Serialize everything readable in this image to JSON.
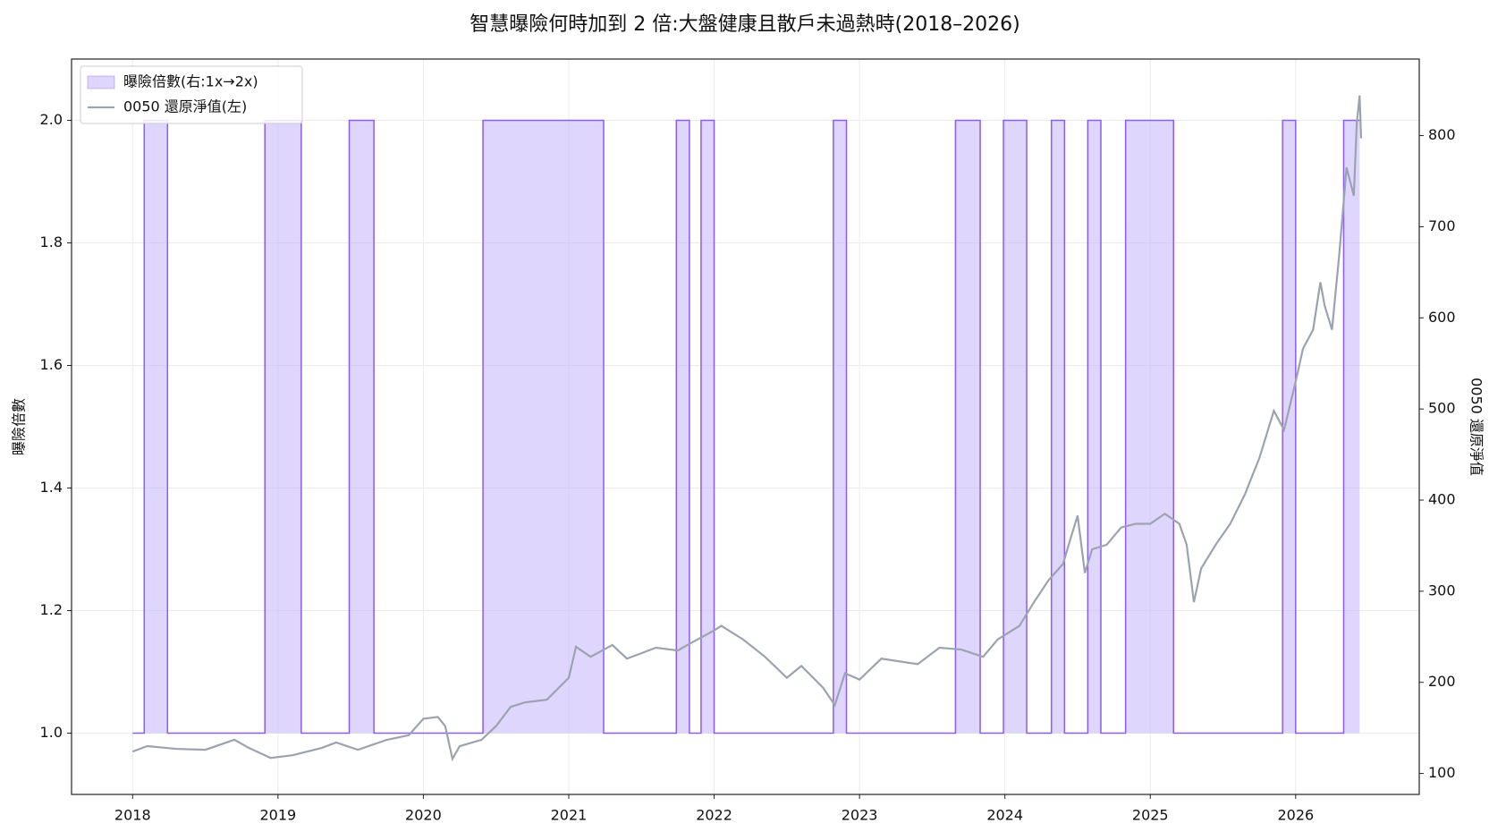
{
  "chart_data": {
    "type": "line",
    "title": "智慧曝險何時加到 2 倍:大盤健康且散戶未過熱時(2018–2026)",
    "y_label": "曝險倍數",
    "y2_label": "0050 還原淨值",
    "xlim": [
      2017.58,
      2026.85
    ],
    "xticks": [
      2018,
      2019,
      2020,
      2021,
      2022,
      2023,
      2024,
      2025,
      2026
    ],
    "ylim": [
      0.9,
      2.1
    ],
    "yticks": [
      {
        "value": 1.0,
        "label": "1.0"
      },
      {
        "value": 1.2,
        "label": "1.2"
      },
      {
        "value": 1.4,
        "label": "1.4"
      },
      {
        "value": 1.6,
        "label": "1.6"
      },
      {
        "value": 1.8,
        "label": "1.8"
      },
      {
        "value": 2.0,
        "label": "2.0"
      }
    ],
    "y2lim": [
      77,
      884
    ],
    "y2ticks": [
      100,
      200,
      300,
      400,
      500,
      600,
      700,
      800
    ],
    "grid": true,
    "legend": "upper left",
    "series": [
      {
        "name": "曝險倍數(右:1x→2x)",
        "color": "#8b5cf6",
        "fill_color": "#c4b5fd",
        "step": "post",
        "axis": "y",
        "x": [
          2018.0,
          2018.08,
          2018.24,
          2018.91,
          2019.16,
          2019.49,
          2019.66,
          2020.41,
          2021.24,
          2021.74,
          2021.83,
          2021.91,
          2022.0,
          2022.82,
          2022.91,
          2023.66,
          2023.83,
          2023.99,
          2024.15,
          2024.32,
          2024.41,
          2024.57,
          2024.66,
          2024.83,
          2025.16,
          2025.91,
          2026.0,
          2026.33,
          2026.44
        ],
        "values": [
          1,
          2,
          1,
          2,
          1,
          2,
          1,
          2,
          1,
          2,
          1,
          2,
          1,
          2,
          1,
          2,
          1,
          2,
          1,
          2,
          1,
          2,
          1,
          2,
          1,
          2,
          1,
          2,
          2
        ]
      },
      {
        "name": "0050 還原淨值(左)",
        "color": "#9ca3af",
        "axis": "y2",
        "x": [
          2018.0,
          2018.1,
          2018.3,
          2018.5,
          2018.7,
          2018.8,
          2018.95,
          2019.1,
          2019.3,
          2019.4,
          2019.55,
          2019.75,
          2019.9,
          2020.0,
          2020.1,
          2020.15,
          2020.2,
          2020.25,
          2020.4,
          2020.5,
          2020.6,
          2020.7,
          2020.85,
          2021.0,
          2021.05,
          2021.15,
          2021.3,
          2021.4,
          2021.6,
          2021.75,
          2021.85,
          2022.0,
          2022.05,
          2022.2,
          2022.35,
          2022.5,
          2022.6,
          2022.75,
          2022.83,
          2022.9,
          2023.0,
          2023.15,
          2023.4,
          2023.55,
          2023.7,
          2023.85,
          2023.95,
          2024.1,
          2024.2,
          2024.3,
          2024.4,
          2024.45,
          2024.5,
          2024.55,
          2024.6,
          2024.7,
          2024.8,
          2024.9,
          2025.0,
          2025.1,
          2025.2,
          2025.25,
          2025.3,
          2025.35,
          2025.45,
          2025.55,
          2025.65,
          2025.75,
          2025.85,
          2025.92,
          2026.0,
          2026.05,
          2026.12,
          2026.17,
          2026.2,
          2026.25,
          2026.3,
          2026.35,
          2026.4,
          2026.42,
          2026.44,
          2026.45
        ],
        "values": [
          124,
          130,
          127,
          126,
          137,
          128,
          117,
          120,
          128,
          134,
          126,
          137,
          142,
          160,
          162,
          152,
          116,
          130,
          137,
          152,
          173,
          178,
          181,
          205,
          239,
          228,
          241,
          226,
          238,
          235,
          244,
          257,
          262,
          247,
          228,
          205,
          218,
          194,
          175,
          210,
          203,
          226,
          220,
          238,
          236,
          228,
          247,
          262,
          288,
          312,
          330,
          357,
          383,
          320,
          346,
          351,
          370,
          374,
          374,
          385,
          374,
          351,
          288,
          325,
          351,
          374,
          406,
          446,
          498,
          477,
          530,
          566,
          587,
          639,
          613,
          587,
          670,
          765,
          734,
          813,
          844,
          797
        ]
      }
    ]
  }
}
